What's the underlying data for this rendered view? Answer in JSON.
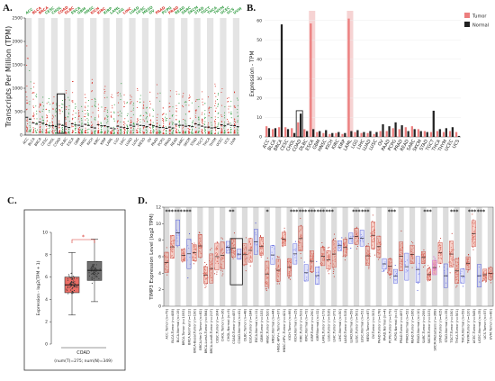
{
  "panels": {
    "a": {
      "label": "A."
    },
    "b": {
      "label": "B."
    },
    "c": {
      "label": "C."
    },
    "d": {
      "label": "D."
    }
  },
  "colors": {
    "tumor": "#ec7e7e",
    "normal": "#222222",
    "accent_red": "#d8342c",
    "blue": "#3b46d8",
    "magenta": "#d13cd6",
    "green": "#3aa04a",
    "shade": "#dadada"
  },
  "chart_data": [
    {
      "panel": "A",
      "type": "scatter",
      "title": "",
      "xlabel": "",
      "ylabel": "Transcripts Per Million (TPM)",
      "ylim": [
        0,
        2500
      ],
      "yticks": [
        0,
        500,
        1000,
        1500,
        2000,
        2500
      ],
      "tick_labels": [
        "0",
        "500",
        "1000",
        "1500",
        "2000",
        "2500"
      ],
      "categories": [
        "ACC",
        "BLCA",
        "BRCA",
        "CESC",
        "CHOL",
        "COAD",
        "DLBC",
        "ESCA",
        "GBM",
        "HNSC",
        "KICH",
        "KIRC",
        "KIRP",
        "LAML",
        "LGG",
        "LIHC",
        "LUAD",
        "LUSC",
        "MESO",
        "OV",
        "PAAD",
        "PCPG",
        "PRAD",
        "READ",
        "SARC",
        "SKCM",
        "STAD",
        "TGCT",
        "THCA",
        "THYM",
        "UCEC",
        "UCS",
        "UVM"
      ],
      "category_colors": [
        "#3aa04a",
        "#d8342c",
        "#d8342c",
        "#3aa04a",
        "#3aa04a",
        "#d8342c",
        "#d8342c",
        "#3aa04a",
        "#3aa04a",
        "#3aa04a",
        "#d8342c",
        "#d8342c",
        "#3aa04a",
        "#3aa04a",
        "#3aa04a",
        "#d8342c",
        "#3aa04a",
        "#3aa04a",
        "#3aa04a",
        "#3aa04a",
        "#d8342c",
        "#3aa04a",
        "#d8342c",
        "#3aa04a",
        "#3aa04a",
        "#3aa04a",
        "#3aa04a",
        "#3aa04a",
        "#3aa04a",
        "#3aa04a",
        "#3aa04a",
        "#3aa04a",
        "#3aa04a"
      ],
      "medians": [
        380,
        260,
        280,
        220,
        200,
        230,
        180,
        240,
        210,
        230,
        170,
        220,
        200,
        150,
        190,
        160,
        210,
        230,
        200,
        220,
        180,
        160,
        170,
        230,
        210,
        200,
        240,
        190,
        170,
        160,
        220,
        230,
        200
      ],
      "max_values": [
        2100,
        1150,
        1000,
        1000,
        900,
        870,
        1000,
        1300,
        900,
        950,
        1200,
        900,
        1100,
        950,
        1300,
        1000,
        900,
        1000,
        900,
        1000,
        1100,
        900,
        1000,
        1200,
        950,
        900,
        1000,
        950,
        900,
        1200,
        1000,
        900,
        950
      ],
      "highlighted_category": "COAD"
    },
    {
      "panel": "B",
      "type": "bar",
      "title": "",
      "xlabel": "",
      "ylabel": "Expression - TPM",
      "ylim": [
        0,
        65
      ],
      "yticks": [
        0,
        10,
        20,
        30,
        40,
        50,
        60
      ],
      "tick_labels": [
        "0",
        "10",
        "20",
        "30",
        "40",
        "50",
        "60"
      ],
      "categories": [
        "ACC",
        "BLCA",
        "BRCA",
        "CESC",
        "CHOL",
        "COAD",
        "DLBC",
        "ESCA",
        "GBM",
        "HNSC",
        "KICH",
        "KIRC",
        "KIRP",
        "LAML",
        "LGG",
        "LIHC",
        "LUAD",
        "LUSC",
        "OV",
        "PAAD",
        "PCPG",
        "PRAD",
        "READ",
        "SARC",
        "SKCM",
        "STAD",
        "TGCT",
        "THCA",
        "THYM",
        "UCEC",
        "UCS"
      ],
      "series": [
        {
          "name": "Tumor",
          "values": [
            5.5,
            4.0,
            5.0,
            5.0,
            4.5,
            7.5,
            4.0,
            58.5,
            2.5,
            2.0,
            1.5,
            2.0,
            1.5,
            61.0,
            2.5,
            2.0,
            2.0,
            1.5,
            3.0,
            3.0,
            4.5,
            4.0,
            5.0,
            5.5,
            4.0,
            3.0,
            2.5,
            3.0,
            2.5,
            3.0,
            2.5
          ]
        },
        {
          "name": "Normal",
          "values": [
            4.5,
            4.5,
            58.0,
            4.0,
            2.0,
            12.0,
            3.0,
            4.0,
            3.0,
            3.5,
            2.0,
            2.5,
            2.0,
            3.0,
            3.5,
            2.5,
            3.0,
            2.5,
            6.5,
            5.5,
            7.5,
            6.0,
            3.0,
            4.0,
            3.0,
            2.5,
            13.5,
            4.0,
            4.5,
            5.0,
            0.5
          ]
        }
      ],
      "legend": [
        "Tumor",
        "Normal"
      ],
      "legend_placement": "top-right",
      "highlighted_category": "COAD",
      "shaded_categories": [
        "ESCA",
        "LAML"
      ]
    },
    {
      "panel": "C",
      "type": "box",
      "title": "",
      "xlabel": "COAD",
      "ylabel": "Expression - log2(TPM + 1)",
      "ylim": [
        0,
        10
      ],
      "yticks": [
        0,
        2,
        4,
        6,
        8,
        10
      ],
      "tick_labels": [
        "0",
        "2",
        "4",
        "6",
        "8",
        "10"
      ],
      "footer": "(num(T)=275; num(N)=349)",
      "significance": "*",
      "boxes": [
        {
          "group": "Tumor",
          "color": "#ec6e66",
          "q1": 4.6,
          "median": 5.3,
          "q3": 6.0,
          "whisker_low": 2.6,
          "whisker_high": 8.2
        },
        {
          "group": "Normal",
          "color": "#707070",
          "q1": 5.7,
          "median": 6.6,
          "q3": 7.4,
          "whisker_low": 3.8,
          "whisker_high": 9.4
        }
      ]
    },
    {
      "panel": "D",
      "type": "box",
      "title": "",
      "xlabel": "",
      "ylabel": "TIMP3 Expression Level (log2 TPM)",
      "ylim": [
        0,
        12
      ],
      "yticks": [
        0,
        2,
        4,
        6,
        8,
        10,
        12
      ],
      "tick_labels": [
        "0",
        "2",
        "4",
        "6",
        "8",
        "10",
        "12"
      ],
      "significance_marks": [
        "***",
        "***",
        "***",
        "",
        "",
        "",
        "",
        "**",
        "",
        "",
        "",
        "*",
        "",
        "",
        "***",
        "***",
        "***",
        "***",
        "***",
        "",
        "",
        "***",
        "***",
        "",
        "",
        "***",
        "",
        "",
        "",
        "***",
        "",
        "",
        "***",
        "",
        "***",
        "***",
        ""
      ],
      "categories": [
        "ACC.Tumor (n=79)",
        "BLCA.Tumor (n=408)",
        "BLCA.Normal (n=19)",
        "BRCA.Tumor (n=1093)",
        "BRCA.Normal (n=112)",
        "BRCA-Basal.Tumor (n=190)",
        "BRCA-Her2.Tumor (n=82)",
        "BRCA-LumA.Tumor (n=564)",
        "BRCA-LumB.Tumor (n=217)",
        "CESC.Tumor (n=304)",
        "CHOL.Tumor (n=36)",
        "CHOL.Normal (n=9)",
        "COAD.Tumor (n=457)",
        "COAD.Normal (n=41)",
        "DLBC.Tumor (n=48)",
        "ESCA.Tumor (n=184)",
        "ESCA.Normal (n=11)",
        "GBM.Tumor (n=153)",
        "HNSC.Tumor (n=520)",
        "HNSC.Normal (n=44)",
        "HNSC-HPV+.Tumor (n=97)",
        "HNSC-HPV-.Tumor (n=421)",
        "KICH.Tumor (n=66)",
        "KICH.Normal (n=25)",
        "KIRC.Tumor (n=533)",
        "KIRC.Normal (n=72)",
        "KIRP.Tumor (n=290)",
        "KIRP.Normal (n=32)",
        "LAML.Tumor (n=173)",
        "LGG.Tumor (n=516)",
        "LIHC.Tumor (n=371)",
        "LIHC.Normal (n=50)",
        "LUAD.Tumor (n=515)",
        "LUAD.Normal (n=59)",
        "LUSC.Tumor (n=501)",
        "LUSC.Normal (n=51)",
        "MESO.Tumor (n=87)",
        "OV.Tumor (n=303)",
        "PAAD.Tumor (n=178)",
        "PAAD.Normal (n=4)",
        "PCPG.Tumor (n=179)",
        "PCPG.Normal (n=3)",
        "PRAD.Tumor (n=497)",
        "PRAD.Normal (n=52)",
        "READ.Tumor (n=166)",
        "READ.Normal (n=10)",
        "SARC.Tumor (n=259)",
        "SKCM.Tumor (n=103)",
        "SKCM.Metastasis (n=368)",
        "STAD.Tumor (n=415)",
        "STAD.Normal (n=35)",
        "TGCT.Tumor (n=150)",
        "THCA.Tumor (n=501)",
        "THCA.Normal (n=59)",
        "THYM.Tumor (n=120)",
        "UCEC.Tumor (n=545)",
        "UCEC.Normal (n=35)",
        "UCS.Tumor (n=57)",
        "UVM.Tumor (n=80)"
      ]
    }
  ]
}
